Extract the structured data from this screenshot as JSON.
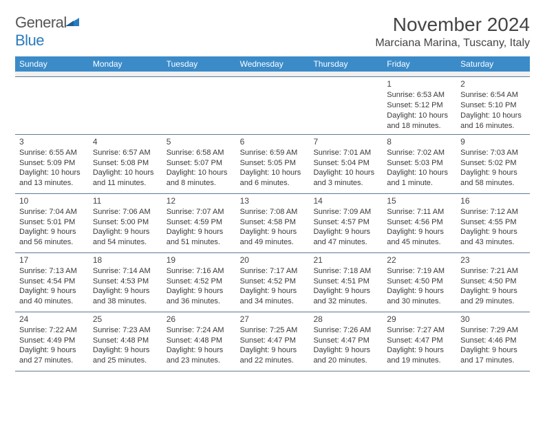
{
  "brand": {
    "general": "General",
    "blue": "Blue"
  },
  "title": "November 2024",
  "location": "Marciana Marina, Tuscany, Italy",
  "style": {
    "header_bg": "#3b8bc9",
    "header_text": "#ffffff",
    "border_color": "#5a7a95",
    "sep_bg": "#f0f0f0",
    "body_text": "#383838",
    "title_color": "#444444",
    "logo_gray": "#555555",
    "logo_blue": "#2a7bbf",
    "title_fontsize": 28,
    "location_fontsize": 16,
    "weekday_fontsize": 12,
    "cell_fontsize": 11
  },
  "weekdays": [
    "Sunday",
    "Monday",
    "Tuesday",
    "Wednesday",
    "Thursday",
    "Friday",
    "Saturday"
  ],
  "weeks": [
    [
      {},
      {},
      {},
      {},
      {},
      {
        "n": "1",
        "sunrise": "Sunrise: 6:53 AM",
        "sunset": "Sunset: 5:12 PM",
        "day1": "Daylight: 10 hours",
        "day2": "and 18 minutes."
      },
      {
        "n": "2",
        "sunrise": "Sunrise: 6:54 AM",
        "sunset": "Sunset: 5:10 PM",
        "day1": "Daylight: 10 hours",
        "day2": "and 16 minutes."
      }
    ],
    [
      {
        "n": "3",
        "sunrise": "Sunrise: 6:55 AM",
        "sunset": "Sunset: 5:09 PM",
        "day1": "Daylight: 10 hours",
        "day2": "and 13 minutes."
      },
      {
        "n": "4",
        "sunrise": "Sunrise: 6:57 AM",
        "sunset": "Sunset: 5:08 PM",
        "day1": "Daylight: 10 hours",
        "day2": "and 11 minutes."
      },
      {
        "n": "5",
        "sunrise": "Sunrise: 6:58 AM",
        "sunset": "Sunset: 5:07 PM",
        "day1": "Daylight: 10 hours",
        "day2": "and 8 minutes."
      },
      {
        "n": "6",
        "sunrise": "Sunrise: 6:59 AM",
        "sunset": "Sunset: 5:05 PM",
        "day1": "Daylight: 10 hours",
        "day2": "and 6 minutes."
      },
      {
        "n": "7",
        "sunrise": "Sunrise: 7:01 AM",
        "sunset": "Sunset: 5:04 PM",
        "day1": "Daylight: 10 hours",
        "day2": "and 3 minutes."
      },
      {
        "n": "8",
        "sunrise": "Sunrise: 7:02 AM",
        "sunset": "Sunset: 5:03 PM",
        "day1": "Daylight: 10 hours",
        "day2": "and 1 minute."
      },
      {
        "n": "9",
        "sunrise": "Sunrise: 7:03 AM",
        "sunset": "Sunset: 5:02 PM",
        "day1": "Daylight: 9 hours",
        "day2": "and 58 minutes."
      }
    ],
    [
      {
        "n": "10",
        "sunrise": "Sunrise: 7:04 AM",
        "sunset": "Sunset: 5:01 PM",
        "day1": "Daylight: 9 hours",
        "day2": "and 56 minutes."
      },
      {
        "n": "11",
        "sunrise": "Sunrise: 7:06 AM",
        "sunset": "Sunset: 5:00 PM",
        "day1": "Daylight: 9 hours",
        "day2": "and 54 minutes."
      },
      {
        "n": "12",
        "sunrise": "Sunrise: 7:07 AM",
        "sunset": "Sunset: 4:59 PM",
        "day1": "Daylight: 9 hours",
        "day2": "and 51 minutes."
      },
      {
        "n": "13",
        "sunrise": "Sunrise: 7:08 AM",
        "sunset": "Sunset: 4:58 PM",
        "day1": "Daylight: 9 hours",
        "day2": "and 49 minutes."
      },
      {
        "n": "14",
        "sunrise": "Sunrise: 7:09 AM",
        "sunset": "Sunset: 4:57 PM",
        "day1": "Daylight: 9 hours",
        "day2": "and 47 minutes."
      },
      {
        "n": "15",
        "sunrise": "Sunrise: 7:11 AM",
        "sunset": "Sunset: 4:56 PM",
        "day1": "Daylight: 9 hours",
        "day2": "and 45 minutes."
      },
      {
        "n": "16",
        "sunrise": "Sunrise: 7:12 AM",
        "sunset": "Sunset: 4:55 PM",
        "day1": "Daylight: 9 hours",
        "day2": "and 43 minutes."
      }
    ],
    [
      {
        "n": "17",
        "sunrise": "Sunrise: 7:13 AM",
        "sunset": "Sunset: 4:54 PM",
        "day1": "Daylight: 9 hours",
        "day2": "and 40 minutes."
      },
      {
        "n": "18",
        "sunrise": "Sunrise: 7:14 AM",
        "sunset": "Sunset: 4:53 PM",
        "day1": "Daylight: 9 hours",
        "day2": "and 38 minutes."
      },
      {
        "n": "19",
        "sunrise": "Sunrise: 7:16 AM",
        "sunset": "Sunset: 4:52 PM",
        "day1": "Daylight: 9 hours",
        "day2": "and 36 minutes."
      },
      {
        "n": "20",
        "sunrise": "Sunrise: 7:17 AM",
        "sunset": "Sunset: 4:52 PM",
        "day1": "Daylight: 9 hours",
        "day2": "and 34 minutes."
      },
      {
        "n": "21",
        "sunrise": "Sunrise: 7:18 AM",
        "sunset": "Sunset: 4:51 PM",
        "day1": "Daylight: 9 hours",
        "day2": "and 32 minutes."
      },
      {
        "n": "22",
        "sunrise": "Sunrise: 7:19 AM",
        "sunset": "Sunset: 4:50 PM",
        "day1": "Daylight: 9 hours",
        "day2": "and 30 minutes."
      },
      {
        "n": "23",
        "sunrise": "Sunrise: 7:21 AM",
        "sunset": "Sunset: 4:50 PM",
        "day1": "Daylight: 9 hours",
        "day2": "and 29 minutes."
      }
    ],
    [
      {
        "n": "24",
        "sunrise": "Sunrise: 7:22 AM",
        "sunset": "Sunset: 4:49 PM",
        "day1": "Daylight: 9 hours",
        "day2": "and 27 minutes."
      },
      {
        "n": "25",
        "sunrise": "Sunrise: 7:23 AM",
        "sunset": "Sunset: 4:48 PM",
        "day1": "Daylight: 9 hours",
        "day2": "and 25 minutes."
      },
      {
        "n": "26",
        "sunrise": "Sunrise: 7:24 AM",
        "sunset": "Sunset: 4:48 PM",
        "day1": "Daylight: 9 hours",
        "day2": "and 23 minutes."
      },
      {
        "n": "27",
        "sunrise": "Sunrise: 7:25 AM",
        "sunset": "Sunset: 4:47 PM",
        "day1": "Daylight: 9 hours",
        "day2": "and 22 minutes."
      },
      {
        "n": "28",
        "sunrise": "Sunrise: 7:26 AM",
        "sunset": "Sunset: 4:47 PM",
        "day1": "Daylight: 9 hours",
        "day2": "and 20 minutes."
      },
      {
        "n": "29",
        "sunrise": "Sunrise: 7:27 AM",
        "sunset": "Sunset: 4:47 PM",
        "day1": "Daylight: 9 hours",
        "day2": "and 19 minutes."
      },
      {
        "n": "30",
        "sunrise": "Sunrise: 7:29 AM",
        "sunset": "Sunset: 4:46 PM",
        "day1": "Daylight: 9 hours",
        "day2": "and 17 minutes."
      }
    ]
  ]
}
